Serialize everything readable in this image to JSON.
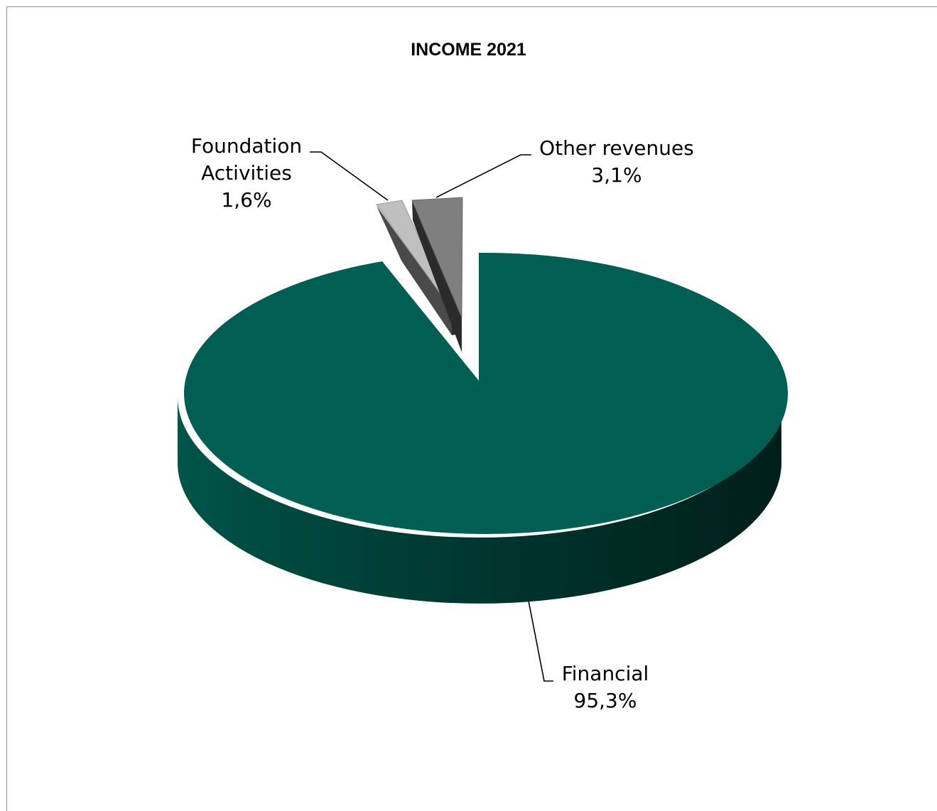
{
  "chart_data": {
    "type": "pie",
    "title": "INCOME 2021",
    "slices": [
      {
        "name": "Financial",
        "value": 95.3,
        "label": "95,3%",
        "color": "#005e53"
      },
      {
        "name": "Foundation Activities",
        "value": 1.6,
        "label": "1,6%",
        "color": "#bfbfbf"
      },
      {
        "name": "Other revenues",
        "value": 3.1,
        "label": "3,1%",
        "color": "#7f7f7f"
      }
    ],
    "three_d": true,
    "exploded_slices": [
      "Foundation Activities",
      "Other revenues"
    ],
    "legend": "none"
  },
  "labels": {
    "financial_name": "Financial",
    "financial_value": "95,3%",
    "foundation_line1": "Foundation",
    "foundation_line2": "Activities",
    "foundation_value": "1,6%",
    "other_name": "Other revenues",
    "other_value": "3,1%"
  }
}
